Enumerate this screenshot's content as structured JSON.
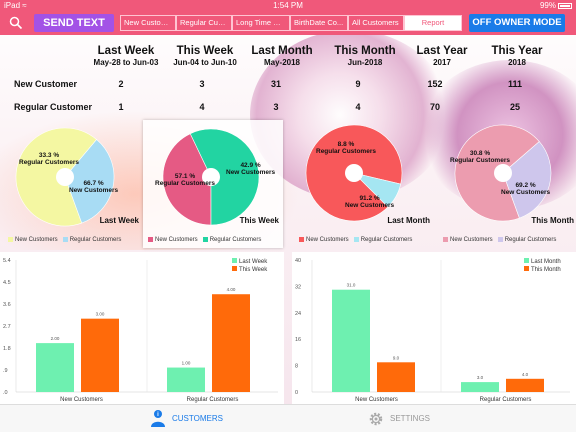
{
  "status_bar": {
    "left": "iPad ≈",
    "time": "1:54 PM",
    "battery": "99%"
  },
  "toolbar": {
    "send_text": "SEND TEXT",
    "owner_mode": "OFF OWNER MODE",
    "tabs": [
      "New Customers",
      "Regular Custo...",
      "Long Time No...",
      "BirthDate Co...",
      "All Customers",
      "Report"
    ],
    "active_tab": "Report"
  },
  "summary": {
    "columns": [
      {
        "title": "Last Week",
        "subtitle": "May-28 to Jun-03"
      },
      {
        "title": "This Week",
        "subtitle": "Jun-04 to Jun-10"
      },
      {
        "title": "Last Month",
        "subtitle": "May-2018"
      },
      {
        "title": "This Month",
        "subtitle": "Jun-2018"
      },
      {
        "title": "Last Year",
        "subtitle": "2017"
      },
      {
        "title": "This Year",
        "subtitle": "2018"
      }
    ],
    "rows": [
      {
        "label": "New Customer",
        "values": [
          "2",
          "3",
          "31",
          "9",
          "152",
          "111"
        ]
      },
      {
        "label": "Regular Customer",
        "values": [
          "1",
          "4",
          "3",
          "4",
          "70",
          "25"
        ]
      }
    ]
  },
  "pies": [
    {
      "title": "Last Week",
      "labels": [
        {
          "pct": "33.3 %",
          "name": "Regular Customers"
        },
        {
          "pct": "66.7 %",
          "name": "New Customers"
        }
      ]
    },
    {
      "title": "This Week",
      "labels": [
        {
          "pct": "42.9 %",
          "name": "New Customers"
        },
        {
          "pct": "57.1 %",
          "name": "Regular Customers"
        }
      ]
    },
    {
      "title": "Last Month",
      "labels": [
        {
          "pct": "8.8 %",
          "name": "Regular Customers"
        },
        {
          "pct": "91.2 %",
          "name": "New Customers"
        }
      ]
    },
    {
      "title": "This Month",
      "labels": [
        {
          "pct": "30.8 %",
          "name": "Regular Customers"
        },
        {
          "pct": "69.2 %",
          "name": "New Customers"
        }
      ]
    }
  ],
  "legend": {
    "new": "New Customers",
    "regular": "Regular Customers"
  },
  "bar_left": {
    "legend": [
      "Last Week",
      "This Week"
    ],
    "categories": [
      "New Customers",
      "Regular Customers"
    ],
    "ticks": [
      "5.4",
      "4.5",
      "3.6",
      "2.7",
      "1.8",
      ".9",
      ".0"
    ],
    "labels": [
      [
        "2.00",
        "3.00"
      ],
      [
        "1.00",
        "4.00"
      ]
    ]
  },
  "bar_right": {
    "legend": [
      "Last Month",
      "This Month"
    ],
    "categories": [
      "New Customers",
      "Regular Customers"
    ],
    "ticks": [
      "40",
      "32",
      "24",
      "16",
      "8",
      "0"
    ],
    "labels": [
      [
        "31.0",
        "9.0"
      ],
      [
        "3.0",
        "4.0"
      ]
    ]
  },
  "nav": {
    "customers": "CUSTOMERS",
    "settings": "SETTINGS"
  },
  "colors": {
    "brand": "#f0587a",
    "purple": "#a352e6",
    "blue": "#1a7be8",
    "barA": "#6ef0b0",
    "barB": "#ff6a0a"
  },
  "chart_data": [
    {
      "type": "pie",
      "title": "Last Week",
      "categories": [
        "New Customers",
        "Regular Customers"
      ],
      "values": [
        66.7,
        33.3
      ],
      "colors": [
        "#f4f7a2",
        "#a8dcf4"
      ]
    },
    {
      "type": "pie",
      "title": "This Week",
      "categories": [
        "New Customers",
        "Regular Customers"
      ],
      "values": [
        42.9,
        57.1
      ],
      "colors": [
        "#e55a84",
        "#22d4a2"
      ]
    },
    {
      "type": "pie",
      "title": "Last Month",
      "categories": [
        "New Customers",
        "Regular Customers"
      ],
      "values": [
        91.2,
        8.8
      ],
      "colors": [
        "#f8585a",
        "#a5e6f2"
      ]
    },
    {
      "type": "pie",
      "title": "This Month",
      "categories": [
        "New Customers",
        "Regular Customers"
      ],
      "values": [
        69.2,
        30.8
      ],
      "colors": [
        "#ec9caf",
        "#cec6ec"
      ]
    },
    {
      "type": "bar",
      "categories": [
        "New Customers",
        "Regular Customers"
      ],
      "series": [
        {
          "name": "Last Week",
          "values": [
            2,
            1
          ]
        },
        {
          "name": "This Week",
          "values": [
            3,
            4
          ]
        }
      ],
      "ylim": [
        0,
        5.4
      ]
    },
    {
      "type": "bar",
      "categories": [
        "New Customers",
        "Regular Customers"
      ],
      "series": [
        {
          "name": "Last Month",
          "values": [
            31,
            3
          ]
        },
        {
          "name": "This Month",
          "values": [
            9,
            4
          ]
        }
      ],
      "ylim": [
        0,
        40
      ]
    }
  ]
}
